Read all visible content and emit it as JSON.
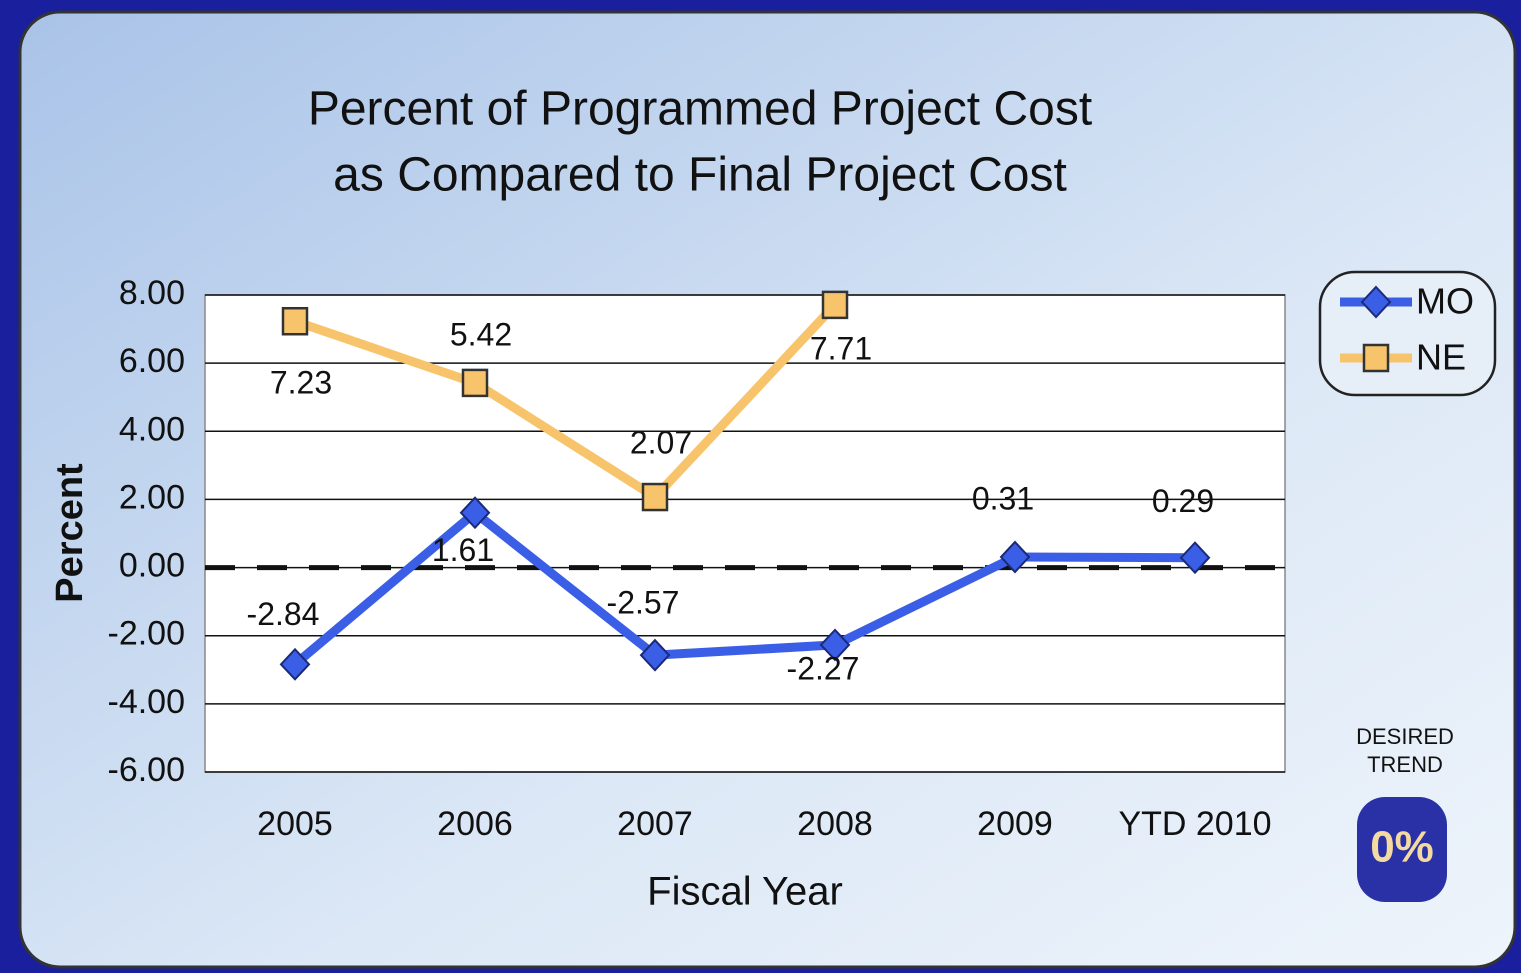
{
  "chart_data": {
    "type": "line",
    "title": [
      "Percent of Programmed Project Cost",
      "as Compared to Final Project Cost"
    ],
    "x_label": "Fiscal Year",
    "y_label": "Percent",
    "categories": [
      "2005",
      "2006",
      "2007",
      "2008",
      "2009",
      "YTD 2010"
    ],
    "series": [
      {
        "name": "MO",
        "color": "#3b5ee6",
        "marker": "diamond",
        "values": [
          -2.84,
          1.61,
          -2.57,
          -2.27,
          0.31,
          0.29
        ]
      },
      {
        "name": "NE",
        "color": "#f7c46c",
        "marker": "square",
        "values": [
          7.23,
          5.42,
          2.07,
          7.71,
          null,
          null
        ]
      }
    ],
    "ylim": [
      -6,
      8
    ],
    "yticks": [
      {
        "value": -6,
        "label": "-6.00"
      },
      {
        "value": -4,
        "label": "-4.00"
      },
      {
        "value": -2,
        "label": "-2.00"
      },
      {
        "value": 0,
        "label": "0.00"
      },
      {
        "value": 2,
        "label": "2.00"
      },
      {
        "value": 4,
        "label": "4.00"
      },
      {
        "value": 6,
        "label": "6.00"
      },
      {
        "value": 8,
        "label": "8.00"
      }
    ],
    "grid": true,
    "legend": "right",
    "desired_trend": {
      "label": [
        "DESIRED",
        "TREND"
      ],
      "value": 0,
      "value_label": "0%"
    }
  }
}
